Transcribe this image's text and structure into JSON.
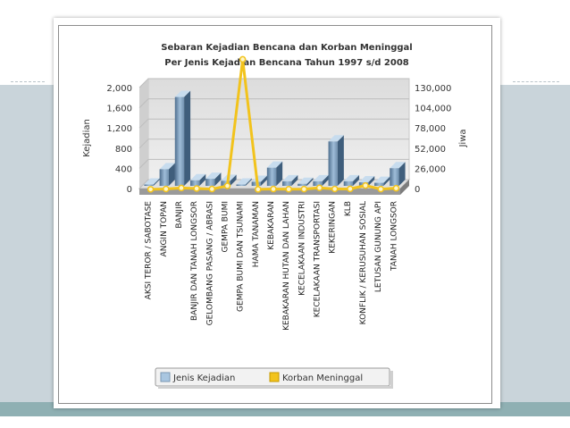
{
  "chart_data": {
    "type": "bar",
    "title_line1": "Sebaran Kejadian Bencana dan Korban Meninggal",
    "title_line2": "Per Jenis Kejadian Bencana Tahun 1997 s/d 2008",
    "ylabel": "Kejadian",
    "y2label": "Jiwa",
    "ylim": [
      0,
      2000
    ],
    "y2lim": [
      0,
      130000
    ],
    "yticks": [
      "2,000",
      "1,600",
      "1,200",
      "800",
      "400",
      "0"
    ],
    "y2ticks": [
      "130,000",
      "104,000",
      "78,000",
      "52,000",
      "26,000",
      "0"
    ],
    "grid": true,
    "legend_position": "bottom",
    "categories": [
      "AKSI TEROR / SABOTASE",
      "ANGIN TOPAN",
      "BANJIR",
      "BANJIR DAN TANAH LONGSOR",
      "GELOMBANG PASANG / ABRASI",
      "GEMPA BUMI",
      "GEMPA BUMI DAN TSUNAMI",
      "HAMA TANAMAN",
      "KEBAKARAN",
      "KEBAKARAN HUTAN DAN LAHAN",
      "KECELAKAAN INDUSTRI",
      "KECELAKAAN TRANSPORTASI",
      "KEKERINGAN",
      "KLB",
      "KONFLIK / KERUSUHAN SOSIAL",
      "LETUSAN GUNUNG API",
      "TANAH LONGSOR"
    ],
    "series": [
      {
        "name": "Jenis Kejadian",
        "kind": "bar",
        "axis": "left",
        "color": "#a9c6e0",
        "values": [
          20,
          330,
          1760,
          110,
          140,
          100,
          10,
          80,
          360,
          90,
          40,
          90,
          880,
          90,
          70,
          60,
          350
        ]
      },
      {
        "name": "Korban Meninggal",
        "kind": "line",
        "axis": "right",
        "color": "#f2c31c",
        "values": [
          200,
          600,
          1800,
          1200,
          500,
          4500,
          166000,
          100,
          500,
          300,
          400,
          2000,
          600,
          700,
          5000,
          400,
          1500
        ]
      }
    ]
  }
}
